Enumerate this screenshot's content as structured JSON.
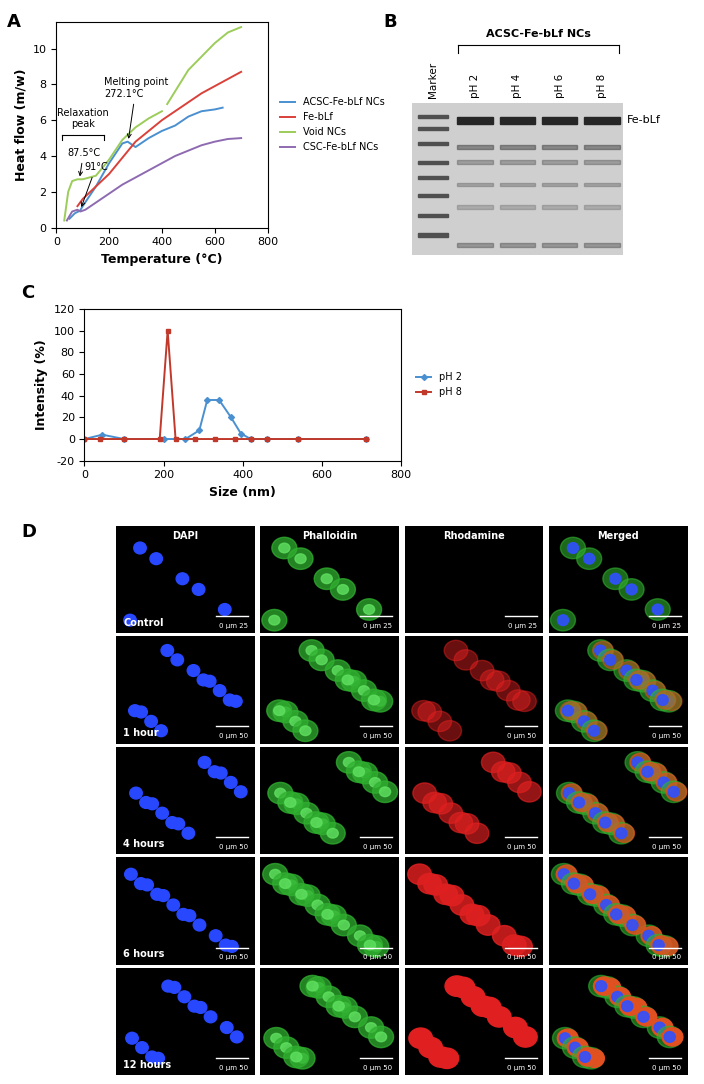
{
  "chart_data": [
    {
      "panel_label": "A",
      "type": "line",
      "x_label": "Temperature (°C)",
      "y_label": "Heat flow (m/w)",
      "xlim": [
        0,
        800
      ],
      "xticks": [
        0,
        200,
        400,
        600,
        800
      ],
      "ylim": [
        0,
        11.5
      ],
      "yticks": [
        0,
        2,
        4,
        6,
        8,
        10
      ],
      "legend": "center left",
      "series": [
        {
          "name": "ACSC-Fe-bLf NCs",
          "color": "#4a90d0",
          "x": [
            50,
            70,
            90,
            100,
            150,
            200,
            250,
            270,
            300,
            350,
            400,
            450,
            500,
            550,
            600,
            630
          ],
          "values": [
            0.5,
            0.8,
            0.95,
            1.2,
            2.3,
            3.6,
            4.7,
            4.8,
            4.5,
            5.0,
            5.4,
            5.7,
            6.2,
            6.5,
            6.6,
            6.7
          ]
        },
        {
          "name": "Fe-bLf",
          "color": "#d9413a",
          "x": [
            80,
            100,
            150,
            200,
            250,
            300,
            350,
            400,
            450,
            500,
            550,
            600,
            650,
            700
          ],
          "values": [
            1.2,
            1.6,
            2.3,
            3.0,
            3.9,
            4.8,
            5.4,
            6.0,
            6.5,
            7.0,
            7.5,
            7.9,
            8.3,
            8.7
          ]
        },
        {
          "name": "Void NCs",
          "color": "#9ccc5a",
          "x": [
            30,
            45,
            60,
            80,
            100,
            150,
            200,
            250,
            300,
            350,
            400,
            410,
            420,
            500,
            600,
            650,
            700
          ],
          "values": [
            0.4,
            2.0,
            2.6,
            2.7,
            2.7,
            2.9,
            3.8,
            4.9,
            5.6,
            6.1,
            6.5,
            null,
            6.9,
            8.8,
            10.3,
            10.9,
            11.2
          ]
        },
        {
          "name": "CSC-Fe-bLf NCs",
          "color": "#8e6bb0",
          "x": [
            40,
            60,
            80,
            91,
            110,
            150,
            200,
            250,
            300,
            350,
            400,
            450,
            500,
            550,
            600,
            650,
            700
          ],
          "values": [
            0.4,
            0.9,
            1.0,
            0.9,
            1.0,
            1.4,
            1.9,
            2.4,
            2.8,
            3.2,
            3.6,
            4.0,
            4.3,
            4.6,
            4.8,
            4.95,
            5.0
          ]
        }
      ],
      "annotations": [
        {
          "text": "Relaxation\npeak"
        },
        {
          "text": "87.5°C",
          "x": 87.5,
          "y": 2.7
        },
        {
          "text": "91°C",
          "x": 91,
          "y": 1.0
        },
        {
          "text": "Melting point\n272.1°C",
          "x": 272.1,
          "y": 4.8
        }
      ]
    },
    {
      "panel_label": "C",
      "type": "line",
      "x_label": "Size (nm)",
      "y_label": "Intensity (%)",
      "xlim": [
        0,
        800
      ],
      "xticks": [
        0,
        200,
        400,
        600,
        800
      ],
      "ylim": [
        -20,
        120
      ],
      "yticks": [
        -20,
        0,
        20,
        40,
        60,
        80,
        100,
        120
      ],
      "legend": "center left",
      "series": [
        {
          "name": "pH 2",
          "color": "#4a90d0",
          "marker": "diamond",
          "x": [
            0,
            45,
            100,
            200,
            255,
            290,
            310,
            340,
            370,
            395,
            420,
            460,
            540,
            710
          ],
          "values": [
            0,
            4,
            0,
            0,
            0,
            8,
            36,
            36,
            20,
            5,
            0,
            0,
            0,
            0
          ]
        },
        {
          "name": "pH 8",
          "color": "#c0392b",
          "marker": "square",
          "x": [
            0,
            40,
            100,
            190,
            210,
            230,
            280,
            330,
            380,
            420,
            460,
            540,
            710
          ],
          "values": [
            0,
            0,
            0,
            0,
            100,
            0,
            0,
            0,
            0,
            0,
            0,
            0,
            0
          ]
        }
      ]
    }
  ],
  "gel": {
    "panel_label": "B",
    "group_label": "ACSC-Fe-bLf NCs",
    "lanes": [
      "Marker",
      "pH 2",
      "pH 4",
      "pH 6",
      "pH 8"
    ],
    "band_label": "Fe-bLf"
  },
  "microscopy": {
    "panel_label": "D",
    "columns": [
      "DAPI",
      "Phalloidin",
      "Rhodamine",
      "Merged"
    ],
    "rows": [
      {
        "label": "Control",
        "scale_bar": "0 µm 25"
      },
      {
        "label": "1 hour",
        "scale_bar": "0 µm 50"
      },
      {
        "label": "4 hours",
        "scale_bar": "0 µm 50"
      },
      {
        "label": "6 hours",
        "scale_bar": "0 µm 50"
      },
      {
        "label": "12 hours",
        "scale_bar": "0 µm 50"
      }
    ]
  }
}
